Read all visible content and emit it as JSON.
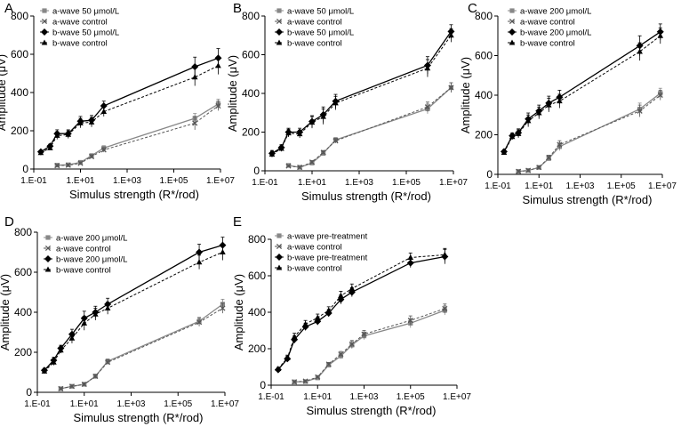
{
  "chart_data": [
    {
      "panel": "A",
      "type": "line",
      "xlabel": "Simulus strength (R*/rod)",
      "ylabel": "Amplitude (μV)",
      "xscale": "log",
      "xlim": [
        0.1,
        10000000
      ],
      "ylim": [
        0,
        800
      ],
      "xticks": [
        "1.E-01",
        "1.E+01",
        "1.E+03",
        "1.E+05",
        "1.E+07"
      ],
      "yticks": [
        "0",
        "200",
        "400",
        "600",
        "800"
      ],
      "legend_position": "top-left",
      "grid": false,
      "series": [
        {
          "name": "a-wave 50 μmol/L",
          "marker": "square",
          "color": "#888888",
          "dash": false,
          "x": [
            1,
            3,
            10,
            30,
            100,
            800000,
            8000000
          ],
          "y": [
            20,
            22,
            35,
            70,
            110,
            265,
            340
          ],
          "err": [
            6,
            6,
            8,
            10,
            12,
            25,
            25
          ]
        },
        {
          "name": "a-wave control",
          "marker": "x",
          "color": "#555555",
          "dash": true,
          "x": [
            1,
            3,
            10,
            30,
            100,
            800000,
            8000000
          ],
          "y": [
            18,
            20,
            30,
            65,
            100,
            240,
            330
          ],
          "err": [
            6,
            6,
            8,
            10,
            12,
            35,
            25
          ]
        },
        {
          "name": "b-wave 50 μmol/L",
          "marker": "diamond",
          "color": "#000000",
          "dash": false,
          "x": [
            0.2,
            0.5,
            1,
            3,
            10,
            30,
            100,
            800000,
            8000000
          ],
          "y": [
            90,
            120,
            185,
            185,
            250,
            255,
            330,
            535,
            580
          ],
          "err": [
            8,
            10,
            20,
            20,
            25,
            25,
            25,
            50,
            50
          ]
        },
        {
          "name": "b-wave control",
          "marker": "triangle",
          "color": "#000000",
          "dash": true,
          "x": [
            0.2,
            0.5,
            1,
            3,
            10,
            30,
            100,
            800000,
            8000000
          ],
          "y": [
            85,
            110,
            175,
            180,
            240,
            245,
            300,
            480,
            540
          ],
          "err": [
            8,
            10,
            20,
            20,
            25,
            25,
            25,
            45,
            45
          ]
        }
      ]
    },
    {
      "panel": "B",
      "type": "line",
      "xlabel": "Simulus strength (R*/rod)",
      "ylabel": "Amplitude (μV)",
      "xscale": "log",
      "xlim": [
        0.1,
        10000000
      ],
      "ylim": [
        0,
        800
      ],
      "xticks": [
        "1.E-01",
        "1.E+01",
        "1.E+03",
        "1.E+05",
        "1.E+07"
      ],
      "yticks": [
        "0",
        "200",
        "400",
        "600",
        "800"
      ],
      "legend_position": "top-left",
      "grid": false,
      "series": [
        {
          "name": "a-wave 50 μmol/L",
          "marker": "square",
          "color": "#888888",
          "dash": false,
          "x": [
            1,
            3,
            10,
            30,
            100,
            800000,
            8000000
          ],
          "y": [
            28,
            18,
            40,
            90,
            160,
            320,
            430
          ],
          "err": [
            5,
            5,
            8,
            10,
            12,
            25,
            25
          ]
        },
        {
          "name": "a-wave control",
          "marker": "x",
          "color": "#555555",
          "dash": true,
          "x": [
            1,
            3,
            10,
            30,
            100,
            800000,
            8000000
          ],
          "y": [
            25,
            18,
            45,
            95,
            155,
            330,
            430
          ],
          "err": [
            5,
            5,
            8,
            10,
            12,
            25,
            25
          ]
        },
        {
          "name": "b-wave 50 μmol/L",
          "marker": "diamond",
          "color": "#000000",
          "dash": false,
          "x": [
            0.2,
            0.5,
            1,
            3,
            10,
            30,
            100,
            800000,
            8000000
          ],
          "y": [
            90,
            120,
            200,
            200,
            255,
            290,
            360,
            545,
            720
          ],
          "err": [
            15,
            15,
            20,
            20,
            30,
            40,
            35,
            45,
            35
          ]
        },
        {
          "name": "b-wave control",
          "marker": "triangle",
          "color": "#000000",
          "dash": true,
          "x": [
            0.2,
            0.5,
            1,
            3,
            10,
            30,
            100,
            800000,
            8000000
          ],
          "y": [
            85,
            115,
            195,
            190,
            250,
            280,
            350,
            530,
            700
          ],
          "err": [
            15,
            15,
            20,
            20,
            30,
            40,
            35,
            45,
            35
          ]
        }
      ]
    },
    {
      "panel": "C",
      "type": "line",
      "xlabel": "Simulus strength (R*/rod)",
      "ylabel": "Amplitude (μV)",
      "xscale": "log",
      "xlim": [
        0.1,
        10000000
      ],
      "ylim": [
        0,
        800
      ],
      "xticks": [
        "1.E-01",
        "1.E+01",
        "1.E+03",
        "1.E+05",
        "1.E+07"
      ],
      "yticks": [
        "0",
        "200",
        "400",
        "600",
        "800"
      ],
      "legend_position": "top-left",
      "grid": false,
      "series": [
        {
          "name": "a-wave 200 μmol/L",
          "marker": "square",
          "color": "#888888",
          "dash": false,
          "x": [
            1,
            3,
            10,
            30,
            100,
            800000,
            8000000
          ],
          "y": [
            15,
            20,
            35,
            80,
            140,
            330,
            410
          ],
          "err": [
            5,
            5,
            8,
            12,
            20,
            30,
            25
          ]
        },
        {
          "name": "a-wave control",
          "marker": "x",
          "color": "#555555",
          "dash": true,
          "x": [
            1,
            3,
            10,
            30,
            100,
            800000,
            8000000
          ],
          "y": [
            15,
            20,
            35,
            85,
            150,
            320,
            400
          ],
          "err": [
            5,
            5,
            8,
            12,
            20,
            30,
            25
          ]
        },
        {
          "name": "b-wave 200 μmol/L",
          "marker": "diamond",
          "color": "#000000",
          "dash": false,
          "x": [
            0.2,
            0.5,
            1,
            3,
            10,
            30,
            100,
            800000,
            8000000
          ],
          "y": [
            115,
            195,
            210,
            280,
            320,
            360,
            390,
            650,
            720
          ],
          "err": [
            10,
            15,
            20,
            30,
            30,
            35,
            35,
            50,
            40
          ]
        },
        {
          "name": "b-wave control",
          "marker": "triangle",
          "color": "#000000",
          "dash": true,
          "x": [
            0.2,
            0.5,
            1,
            3,
            10,
            30,
            100,
            800000,
            8000000
          ],
          "y": [
            110,
            190,
            205,
            270,
            310,
            350,
            370,
            620,
            700
          ],
          "err": [
            10,
            15,
            20,
            30,
            30,
            35,
            35,
            45,
            40
          ]
        }
      ]
    },
    {
      "panel": "D",
      "type": "line",
      "xlabel": "Simulus strength (R*/rod)",
      "ylabel": "Amplitude (μV)",
      "xscale": "log",
      "xlim": [
        0.1,
        10000000
      ],
      "ylim": [
        0,
        800
      ],
      "xticks": [
        "1.E-01",
        "1.E+01",
        "1.E+03",
        "1.E+05",
        "1.E+07"
      ],
      "yticks": [
        "0",
        "200",
        "400",
        "600",
        "800"
      ],
      "legend_position": "top-left",
      "grid": false,
      "series": [
        {
          "name": "a-wave 200 μmol/L",
          "marker": "square",
          "color": "#888888",
          "dash": false,
          "x": [
            1,
            3,
            10,
            30,
            100,
            800000,
            8000000
          ],
          "y": [
            18,
            30,
            40,
            80,
            155,
            355,
            440
          ],
          "err": [
            5,
            6,
            8,
            10,
            12,
            20,
            25
          ]
        },
        {
          "name": "a-wave control",
          "marker": "x",
          "color": "#555555",
          "dash": true,
          "x": [
            1,
            3,
            10,
            30,
            100,
            800000,
            8000000
          ],
          "y": [
            18,
            30,
            40,
            80,
            150,
            350,
            420
          ],
          "err": [
            5,
            6,
            8,
            10,
            12,
            20,
            25
          ]
        },
        {
          "name": "b-wave 200 μmol/L",
          "marker": "diamond",
          "color": "#000000",
          "dash": false,
          "x": [
            0.2,
            0.5,
            1,
            3,
            10,
            30,
            100,
            800000,
            8000000
          ],
          "y": [
            110,
            160,
            220,
            290,
            370,
            400,
            440,
            700,
            735
          ],
          "err": [
            10,
            15,
            15,
            25,
            35,
            30,
            30,
            40,
            40
          ]
        },
        {
          "name": "b-wave control",
          "marker": "triangle",
          "color": "#000000",
          "dash": true,
          "x": [
            0.2,
            0.5,
            1,
            3,
            10,
            30,
            100,
            800000,
            8000000
          ],
          "y": [
            105,
            150,
            210,
            270,
            345,
            390,
            420,
            650,
            700
          ],
          "err": [
            10,
            15,
            15,
            25,
            35,
            30,
            30,
            35,
            40
          ]
        }
      ]
    },
    {
      "panel": "E",
      "type": "line",
      "xlabel": "Simulus strength (R*/rod)",
      "ylabel": "Amplitude (μV)",
      "xscale": "log",
      "xlim": [
        0.1,
        10000000
      ],
      "ylim": [
        0,
        800
      ],
      "xticks": [
        "1.E-01",
        "1.E+01",
        "1.E+03",
        "1.E+05",
        "1.E+07"
      ],
      "yticks": [
        "0",
        "200",
        "400",
        "600",
        "800"
      ],
      "legend_position": "top-left",
      "grid": false,
      "series": [
        {
          "name": "a-wave pre-treatment",
          "marker": "square",
          "color": "#888888",
          "dash": false,
          "x": [
            1,
            3,
            10,
            30,
            100,
            300,
            1000,
            100000,
            3000000
          ],
          "y": [
            18,
            20,
            40,
            110,
            160,
            220,
            270,
            340,
            410
          ],
          "err": [
            5,
            5,
            8,
            10,
            15,
            20,
            20,
            25,
            25
          ]
        },
        {
          "name": "a-wave control",
          "marker": "x",
          "color": "#555555",
          "dash": true,
          "x": [
            1,
            3,
            10,
            30,
            100,
            300,
            1000,
            100000,
            3000000
          ],
          "y": [
            18,
            22,
            45,
            115,
            170,
            225,
            280,
            355,
            420
          ],
          "err": [
            5,
            5,
            8,
            10,
            15,
            20,
            20,
            25,
            25
          ]
        },
        {
          "name": "b-wave pre-treatment",
          "marker": "diamond",
          "color": "#000000",
          "dash": false,
          "x": [
            0.2,
            0.5,
            1,
            3,
            10,
            30,
            100,
            300,
            100000,
            3000000
          ],
          "y": [
            85,
            145,
            250,
            320,
            350,
            395,
            470,
            510,
            670,
            705
          ],
          "err": [
            8,
            15,
            20,
            20,
            20,
            20,
            25,
            25,
            25,
            40
          ]
        },
        {
          "name": "b-wave control",
          "marker": "triangle",
          "color": "#000000",
          "dash": true,
          "x": [
            0.2,
            0.5,
            1,
            3,
            10,
            30,
            100,
            300,
            100000,
            3000000
          ],
          "y": [
            90,
            150,
            265,
            335,
            370,
            410,
            490,
            530,
            700,
            715
          ],
          "err": [
            8,
            15,
            20,
            20,
            20,
            20,
            25,
            25,
            25,
            35
          ]
        }
      ]
    }
  ]
}
